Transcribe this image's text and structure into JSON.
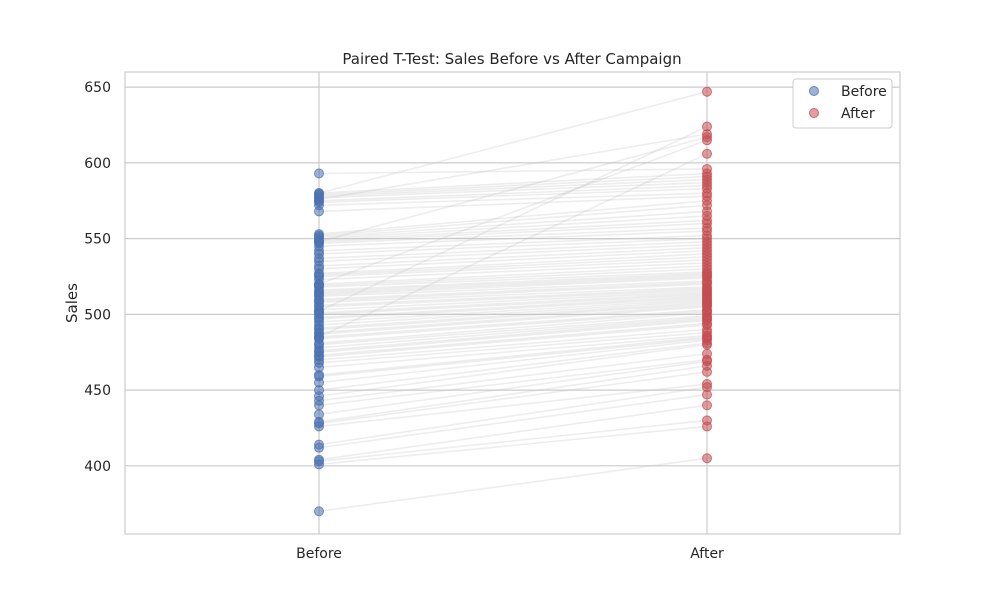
{
  "chart_data": {
    "type": "scatter",
    "title": "Paired T-Test: Sales Before vs After Campaign",
    "xlabel": "",
    "ylabel": "Sales",
    "categories": [
      "Before",
      "After"
    ],
    "ylim": [
      355,
      660
    ],
    "yticks": [
      400,
      450,
      500,
      550,
      600,
      650
    ],
    "grid": true,
    "legend_position": "top-right",
    "series": [
      {
        "name": "Before",
        "color": "#4C72B0",
        "category": "Before"
      },
      {
        "name": "After",
        "color": "#C44E52",
        "category": "After"
      }
    ],
    "connector_color": "#d9d9d9",
    "pairs": [
      [
        370,
        405
      ],
      [
        401,
        426
      ],
      [
        403,
        430
      ],
      [
        404,
        440
      ],
      [
        412,
        447
      ],
      [
        414,
        452
      ],
      [
        426,
        454
      ],
      [
        428,
        462
      ],
      [
        429,
        466
      ],
      [
        434,
        469
      ],
      [
        440,
        470
      ],
      [
        443,
        474
      ],
      [
        446,
        480
      ],
      [
        450,
        481
      ],
      [
        455,
        483
      ],
      [
        459,
        484
      ],
      [
        460,
        485
      ],
      [
        465,
        486
      ],
      [
        468,
        488
      ],
      [
        470,
        490
      ],
      [
        472,
        493
      ],
      [
        473,
        494
      ],
      [
        475,
        496
      ],
      [
        476,
        497
      ],
      [
        478,
        498
      ],
      [
        480,
        499
      ],
      [
        481,
        501
      ],
      [
        484,
        502
      ],
      [
        485,
        503
      ],
      [
        487,
        505
      ],
      [
        488,
        506
      ],
      [
        490,
        507
      ],
      [
        491,
        508
      ],
      [
        493,
        509
      ],
      [
        495,
        510
      ],
      [
        497,
        511
      ],
      [
        498,
        512
      ],
      [
        500,
        513
      ],
      [
        501,
        514
      ],
      [
        503,
        515
      ],
      [
        505,
        516
      ],
      [
        506,
        517
      ],
      [
        508,
        518
      ],
      [
        509,
        520
      ],
      [
        510,
        521
      ],
      [
        512,
        522
      ],
      [
        513,
        524
      ],
      [
        514,
        525
      ],
      [
        515,
        526
      ],
      [
        516,
        527
      ],
      [
        518,
        528
      ],
      [
        519,
        530
      ],
      [
        520,
        532
      ],
      [
        523,
        534
      ],
      [
        525,
        536
      ],
      [
        526,
        538
      ],
      [
        527,
        540
      ],
      [
        530,
        542
      ],
      [
        532,
        544
      ],
      [
        535,
        546
      ],
      [
        537,
        548
      ],
      [
        540,
        550
      ],
      [
        542,
        552
      ],
      [
        545,
        555
      ],
      [
        547,
        557
      ],
      [
        548,
        560
      ],
      [
        549,
        562
      ],
      [
        550,
        565
      ],
      [
        551,
        568
      ],
      [
        552,
        572
      ],
      [
        553,
        575
      ],
      [
        568,
        578
      ],
      [
        572,
        580
      ],
      [
        574,
        583
      ],
      [
        575,
        585
      ],
      [
        577,
        587
      ],
      [
        578,
        589
      ],
      [
        579,
        591
      ],
      [
        580,
        593
      ],
      [
        593,
        596
      ],
      [
        485,
        606
      ],
      [
        520,
        615
      ],
      [
        548,
        617
      ],
      [
        576,
        619
      ],
      [
        502,
        624
      ],
      [
        580,
        647
      ]
    ]
  }
}
